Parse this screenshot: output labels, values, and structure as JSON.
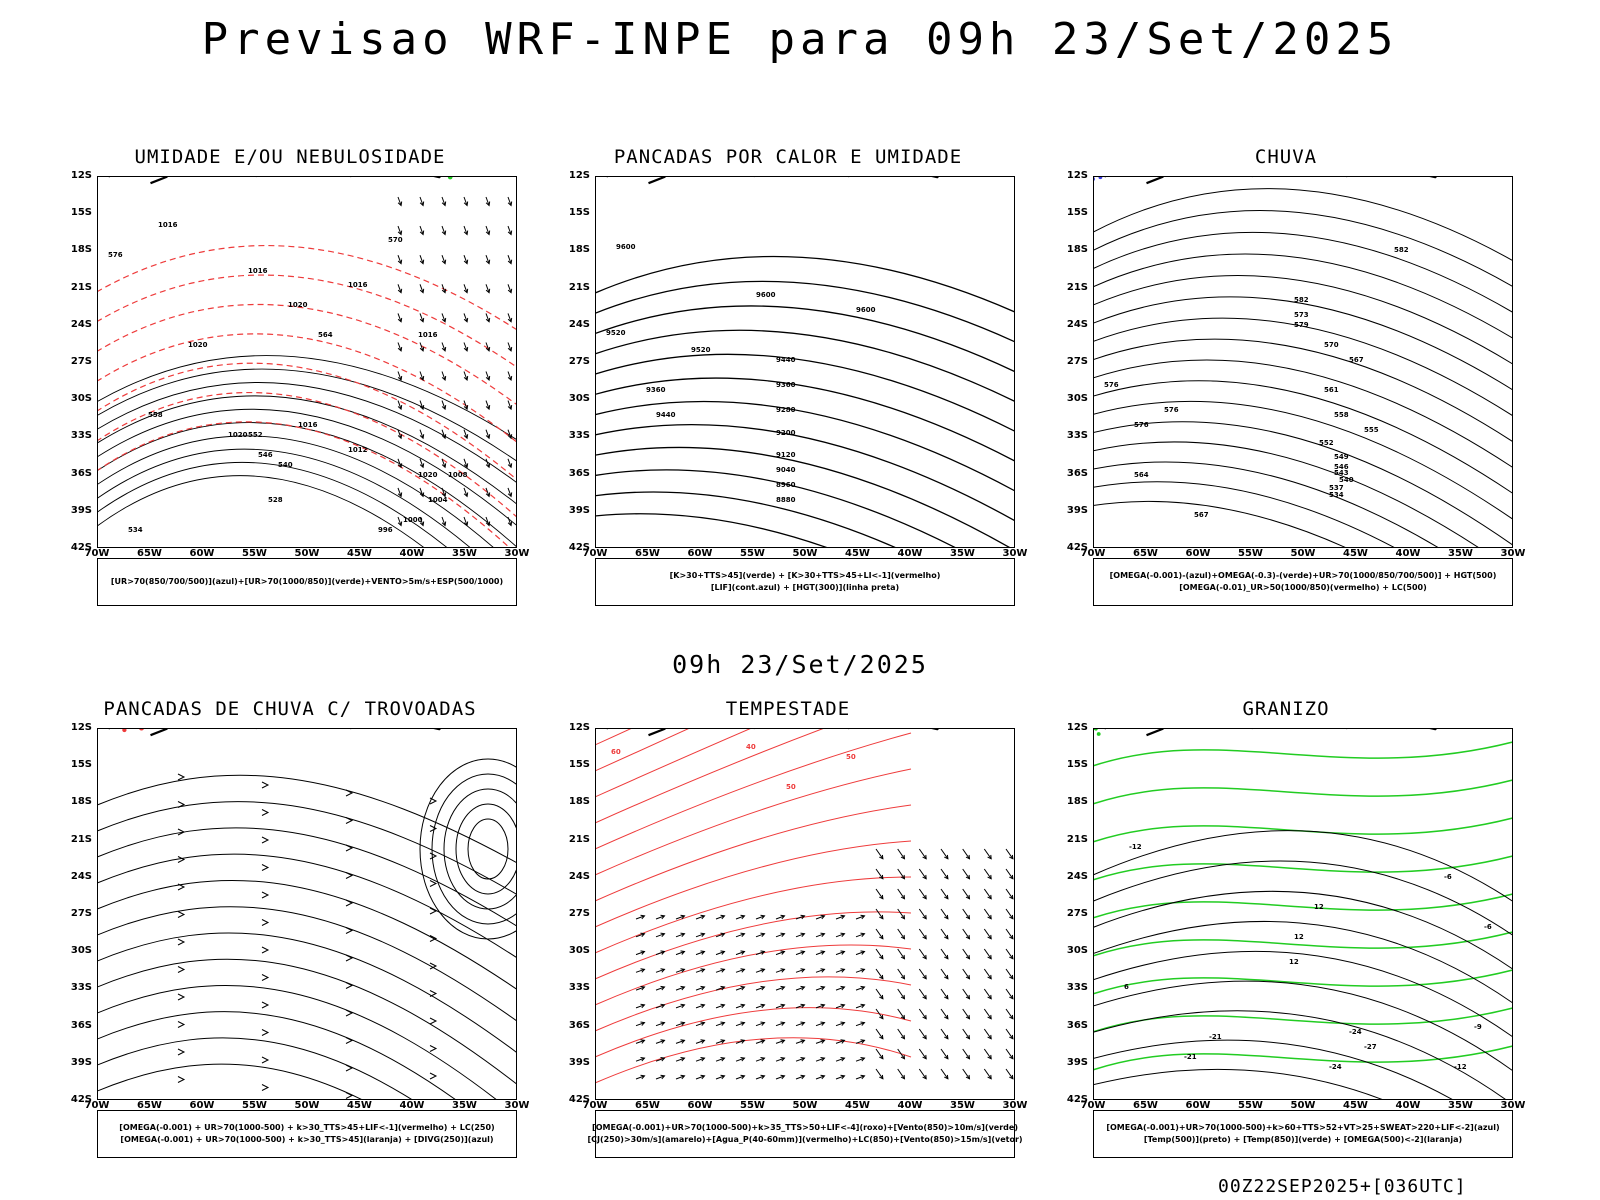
{
  "header": {
    "title": "Previsao WRF-INPE  para 09h 23/Set/2025"
  },
  "mid_title": "09h 23/Set/2025",
  "footer": "00Z22SEP2025+[036UTC]",
  "axes": {
    "lat_labels": [
      "12S",
      "15S",
      "18S",
      "21S",
      "24S",
      "27S",
      "30S",
      "33S",
      "36S",
      "39S",
      "42S"
    ],
    "lon_labels": [
      "70W",
      "65W",
      "60W",
      "55W",
      "50W",
      "45W",
      "40W",
      "35W",
      "30W"
    ]
  },
  "colors": {
    "blue": "#3b3bdf",
    "light_blue": "#b3b3f2",
    "green": "#22cc22",
    "red": "#ee3b3b",
    "dark_teal": "#1f4d4a",
    "yellow": "#e2dc3a",
    "orange": "#ee8a22"
  },
  "panels": [
    {
      "id": "umidade",
      "title": "UMIDADE E/OU NEBULOSIDADE",
      "legend": [
        "[UR>70(850/700/500)](azul)+[UR>70(1000/850)](verde)+VENTO>5m/s+ESP(500/1000)"
      ],
      "contour_labels": [
        "1016",
        "1016",
        "1020",
        "1016",
        "1020",
        "1020",
        "1016",
        "1012",
        "1020",
        "1008",
        "1004",
        "1000",
        "996",
        "570",
        "576",
        "564",
        "552",
        "546",
        "540",
        "528",
        "534",
        "558",
        "1016"
      ]
    },
    {
      "id": "pancadas-calor",
      "title": "PANCADAS POR CALOR E UMIDADE",
      "legend": [
        "[K>30+TTS>45](verde) + [K>30+TTS>45+LI<-1](vermelho)",
        "[LIF](cont.azul) + [HGT(300)](linha preta)"
      ],
      "contour_labels": [
        "9600",
        "9600",
        "9520",
        "9520",
        "9440",
        "9360",
        "9440",
        "9360",
        "9280",
        "9200",
        "9120",
        "9040",
        "8960",
        "8880",
        "9600"
      ]
    },
    {
      "id": "chuva",
      "title": "CHUVA",
      "legend": [
        "[OMEGA(-0.001)-(azul)+OMEGA(-0.3)-(verde)+UR>70(1000/850/700/500)] + HGT(500)",
        "[OMEGA(-0.01)_UR>50(1000/850)(vermelho) + LC(500)"
      ],
      "contour_labels": [
        "582",
        "582",
        "576",
        "576",
        "573",
        "570",
        "567",
        "561",
        "558",
        "555",
        "552",
        "549",
        "546",
        "543",
        "540",
        "537",
        "534",
        "579",
        "576",
        "564",
        "567"
      ]
    },
    {
      "id": "pancadas-trovoadas",
      "title": "PANCADAS DE CHUVA C/ TROVOADAS",
      "legend": [
        "[OMEGA(-0.001) + UR>70(1000-500) + k>30_TTS>45+LIF<-1](vermelho) + LC(250)",
        "[OMEGA(-0.001) + UR>70(1000-500) + k>30_TTS>45](laranja) + [DIVG(250)](azul)"
      ],
      "contour_labels": []
    },
    {
      "id": "tempestade",
      "title": "TEMPESTADE",
      "legend": [
        "[OMEGA(-0.001)+UR>70(1000-500)+k>35_TTS>50+LIF<-4](roxo)+[Vento(850)>10m/s](verde)",
        "[CJ(250)>30m/s](amarelo)+[Agua_P(40-60mm)](vermelho)+LC(850)+[Vento(850)>15m/s](vetor)"
      ],
      "contour_labels": [
        "60",
        "40",
        "50",
        "50"
      ]
    },
    {
      "id": "granizo",
      "title": "GRANIZO",
      "legend": [
        "[OMEGA(-0.001)+UR>70(1000-500)+k>60+TTS>52+VT>25+SWEAT>220+LIF<-2](azul)",
        "[Temp(500)](preto) + [Temp(850)](verde) + [OMEGA(500)<-2](laranja)"
      ],
      "contour_labels": [
        "-12",
        "-6",
        "12",
        "12",
        "12",
        "-21",
        "-21",
        "-24",
        "-27",
        "-24",
        "-12",
        "-9",
        "-6",
        "3",
        "6"
      ]
    }
  ]
}
